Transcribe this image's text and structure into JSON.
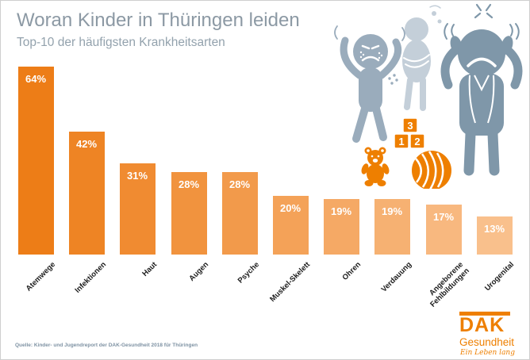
{
  "header": {
    "title": "Woran Kinder in Thüringen leiden",
    "subtitle": "Top-10 der häufigsten Krankheitsarten"
  },
  "chart_data": {
    "type": "bar",
    "title": "Woran Kinder in Thüringen leiden",
    "subtitle": "Top-10 der häufigsten Krankheitsarten",
    "categories": [
      "Atemwege",
      "Infektionen",
      "Haut",
      "Augen",
      "Psyche",
      "Muskel-Skelett",
      "Ohren",
      "Verdauung",
      "Angeborene\nFehlbildungen",
      "Urogenital"
    ],
    "values": [
      64,
      42,
      31,
      28,
      28,
      20,
      19,
      19,
      17,
      13
    ],
    "value_suffix": "%",
    "ylim": [
      0,
      70
    ],
    "grid": false,
    "legend": false,
    "bar_colors": [
      "#ED7D17",
      "#EE8424",
      "#F08B31",
      "#F1933E",
      "#F29A4B",
      "#F4A258",
      "#F5A965",
      "#F6B172",
      "#F8B87F",
      "#F9C08C"
    ],
    "value_label_color": "#FFFFFF",
    "category_label_color": "#1A1A1A",
    "category_label_rotation_deg": -45
  },
  "illustration": {
    "icons": [
      "itchy-child-figure",
      "stomachache-child-figure",
      "headache-child-figure",
      "anger-mark-icon",
      "sweat-drops-icon",
      "teddy-bear-icon",
      "ball-icon",
      "number-blocks-icon"
    ],
    "block_numbers": [
      "3",
      "1",
      "2"
    ],
    "colors": {
      "child_left": "#9AACBC",
      "child_middle": "#C4CFD9",
      "child_right": "#7F97A9",
      "toys": "#EE7F00"
    }
  },
  "footer": {
    "source": "Quelle: Kinder- und Jugendreport der DAK-Gesundheit 2018 für Thüringen"
  },
  "logo": {
    "name": "DAK",
    "subtitle": "Gesundheit",
    "tagline": "Ein Leben lang",
    "color": "#EE7F00"
  },
  "colors": {
    "background": "#FFFFFF",
    "title": "#8C99A4",
    "subtitle": "#93A2AD",
    "source": "#7E92A3"
  }
}
